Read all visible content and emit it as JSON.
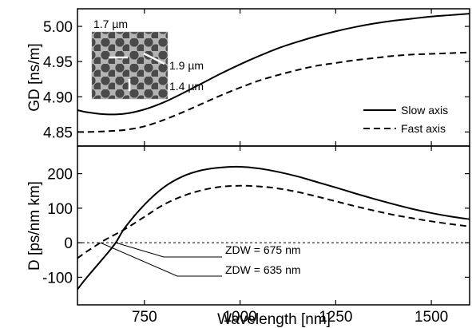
{
  "chart_data": [
    {
      "type": "line",
      "xlabel": "",
      "ylabel": "GD [ns/m]",
      "xlim": [
        575,
        1600
      ],
      "ylim": [
        4.83,
        5.025
      ],
      "yticks": [
        "4.85",
        "4.90",
        "4.95",
        "5.00"
      ],
      "legend_position": "right",
      "series": [
        {
          "name": "Slow axis",
          "style": "solid",
          "x": [
            575,
            600,
            650,
            700,
            750,
            800,
            850,
            900,
            950,
            1000,
            1050,
            1100,
            1150,
            1200,
            1250,
            1300,
            1350,
            1400,
            1450,
            1500,
            1550,
            1600
          ],
          "y": [
            4.881,
            4.878,
            4.875,
            4.876,
            4.882,
            4.892,
            4.905,
            4.919,
            4.933,
            4.946,
            4.958,
            4.969,
            4.978,
            4.986,
            4.993,
            4.999,
            5.004,
            5.008,
            5.011,
            5.014,
            5.016,
            5.018
          ]
        },
        {
          "name": "Fast axis",
          "style": "dashed",
          "x": [
            575,
            600,
            650,
            700,
            750,
            800,
            850,
            900,
            950,
            1000,
            1050,
            1100,
            1150,
            1200,
            1250,
            1300,
            1350,
            1400,
            1450,
            1500,
            1550,
            1600
          ],
          "y": [
            4.85,
            4.85,
            4.851,
            4.853,
            4.858,
            4.867,
            4.878,
            4.89,
            4.902,
            4.913,
            4.923,
            4.931,
            4.938,
            4.944,
            4.948,
            4.952,
            4.955,
            4.958,
            4.96,
            4.961,
            4.962,
            4.963
          ]
        }
      ],
      "inset": {
        "labels": [
          "1.7 µm",
          "1.9 µm",
          "1.4 µm"
        ]
      }
    },
    {
      "type": "line",
      "xlabel": "Wavelength [nm]",
      "ylabel": "D [ps/nm km]",
      "xlim": [
        575,
        1600
      ],
      "ylim": [
        -180,
        280
      ],
      "xticks": [
        "750",
        "1000",
        "1250",
        "1500"
      ],
      "yticks": [
        "-100",
        "0",
        "100",
        "200"
      ],
      "zero_line": "dotted",
      "series": [
        {
          "name": "Slow axis",
          "style": "solid",
          "x": [
            575,
            600,
            650,
            675,
            700,
            750,
            800,
            850,
            900,
            950,
            1000,
            1050,
            1100,
            1150,
            1200,
            1250,
            1300,
            1350,
            1400,
            1450,
            1500,
            1550,
            1600
          ],
          "y": [
            -135,
            -100,
            -35,
            0,
            45,
            110,
            160,
            192,
            210,
            218,
            220,
            215,
            205,
            192,
            176,
            160,
            143,
            127,
            112,
            98,
            86,
            76,
            68
          ]
        },
        {
          "name": "Fast axis",
          "style": "dashed",
          "x": [
            575,
            600,
            635,
            650,
            700,
            750,
            800,
            850,
            900,
            950,
            1000,
            1050,
            1100,
            1150,
            1200,
            1250,
            1300,
            1350,
            1400,
            1450,
            1500,
            1550,
            1600
          ],
          "y": [
            -45,
            -25,
            0,
            10,
            40,
            75,
            110,
            135,
            152,
            162,
            165,
            163,
            157,
            147,
            134,
            120,
            106,
            93,
            81,
            71,
            62,
            54,
            47
          ]
        }
      ],
      "annotations": [
        {
          "text": "ZDW = 675 nm",
          "x": 675,
          "y": 0
        },
        {
          "text": "ZDW = 635 nm",
          "x": 635,
          "y": 0
        }
      ]
    }
  ]
}
